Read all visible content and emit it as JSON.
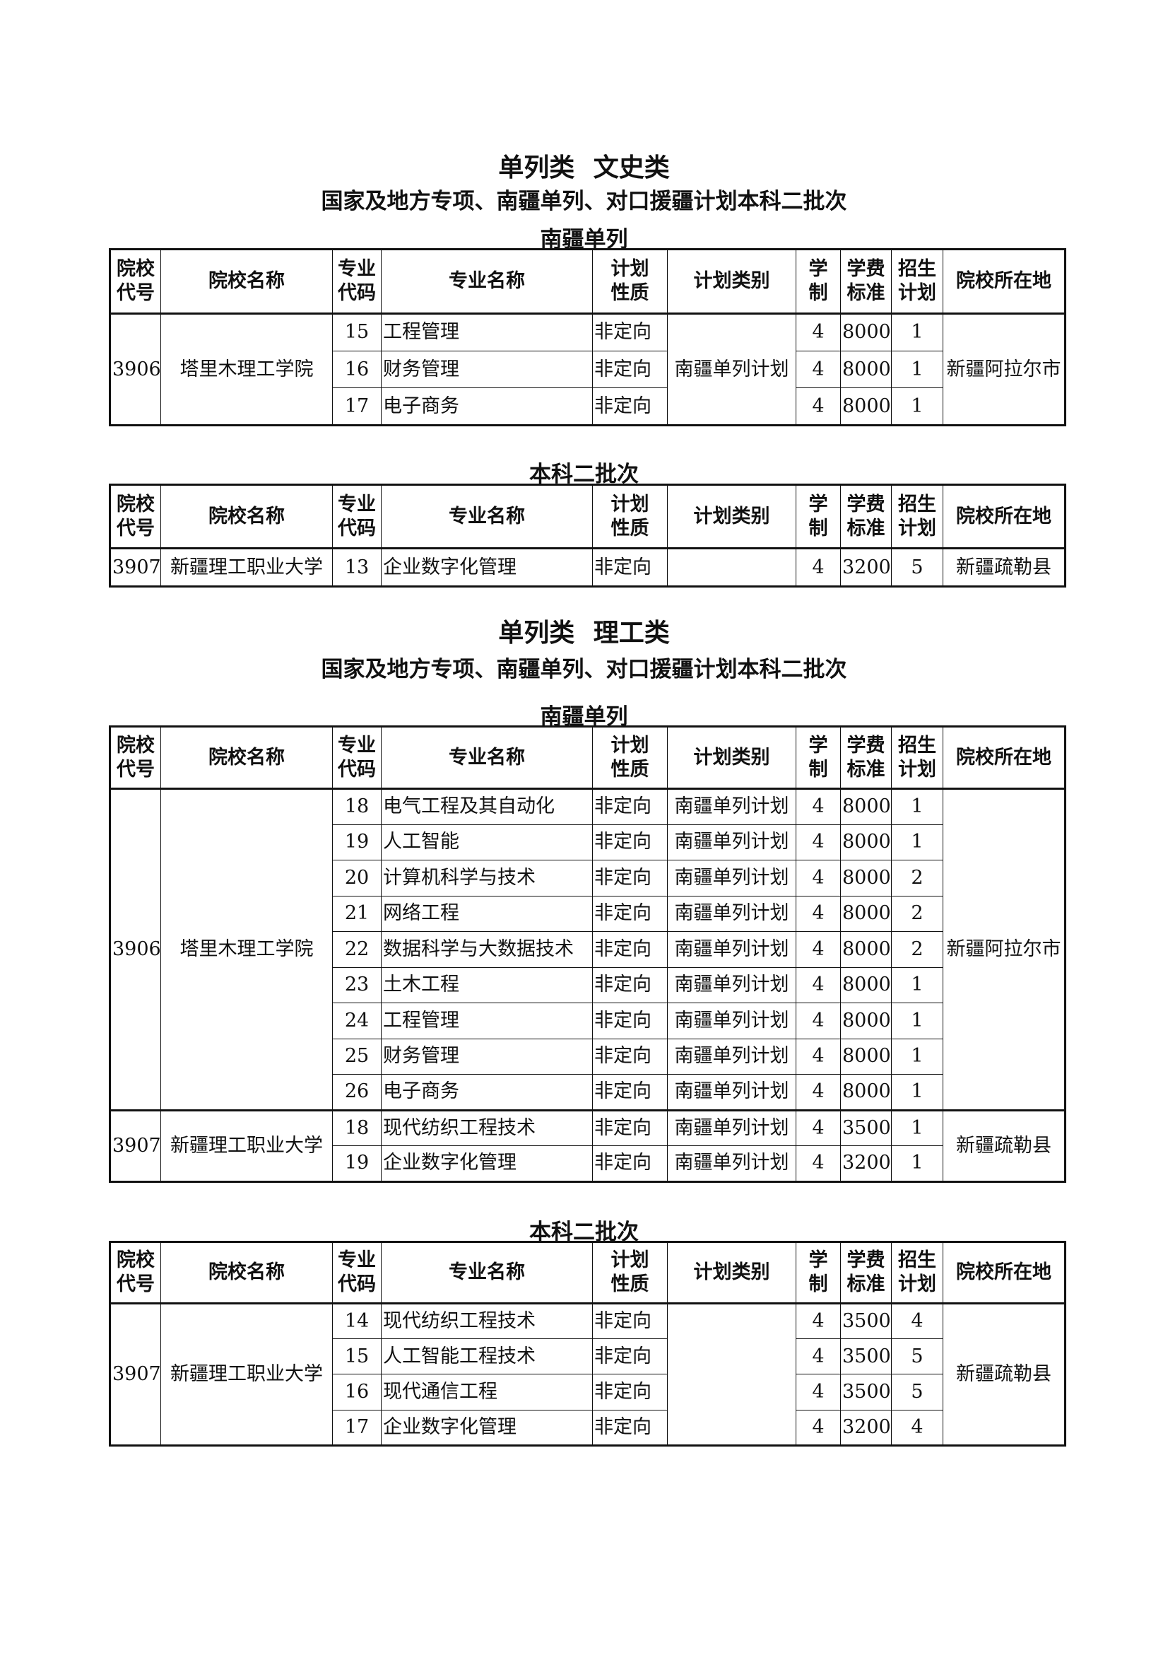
{
  "headers": [
    "院校代号",
    "院校名称",
    "专业代码",
    "专业名称",
    "计划性质",
    "计划类别",
    "学制",
    "学费标准",
    "招生计划",
    "院校所在地"
  ],
  "header_lines": [
    [
      "院校",
      "代号"
    ],
    [
      "院校名称"
    ],
    [
      "专业",
      "代码"
    ],
    [
      "专业名称"
    ],
    [
      "计划",
      "性质"
    ],
    [
      "计划类别"
    ],
    [
      "学",
      "制"
    ],
    [
      "学费",
      "标准"
    ],
    [
      "招生",
      "计划"
    ],
    [
      "院校所在地"
    ]
  ],
  "sections": [
    {
      "title": "单列类 文史类",
      "subtitle": "国家及地方专项、南疆单列、对口援疆计划本科二批次",
      "tables": [
        {
          "label": "南疆单列",
          "groups": [
            {
              "code": "3906",
              "name": "塔里木理工学院",
              "location": "新疆阿拉尔市",
              "plan_type": "南疆单列计划",
              "majors": [
                {
                  "code": "15",
                  "name": "工程管理",
                  "nature": "非定向",
                  "years": "4",
                  "fee": "8000",
                  "quota": "1"
                },
                {
                  "code": "16",
                  "name": "财务管理",
                  "nature": "非定向",
                  "years": "4",
                  "fee": "8000",
                  "quota": "1"
                },
                {
                  "code": "17",
                  "name": "电子商务",
                  "nature": "非定向",
                  "years": "4",
                  "fee": "8000",
                  "quota": "1"
                }
              ]
            }
          ]
        },
        {
          "label": "本科二批次",
          "groups": [
            {
              "code": "3907",
              "name": "新疆理工职业大学",
              "location": "新疆疏勒县",
              "plan_type": "",
              "majors": [
                {
                  "code": "13",
                  "name": "企业数字化管理",
                  "nature": "非定向",
                  "years": "4",
                  "fee": "3200",
                  "quota": "5"
                }
              ]
            }
          ]
        }
      ]
    },
    {
      "title": "单列类 理工类",
      "subtitle": "国家及地方专项、南疆单列、对口援疆计划本科二批次",
      "tables": [
        {
          "label": "南疆单列",
          "groups": [
            {
              "code": "3906",
              "name": "塔里木理工学院",
              "location": "新疆阿拉尔市",
              "majors": [
                {
                  "code": "18",
                  "name": "电气工程及其自动化",
                  "nature": "非定向",
                  "plan_type": "南疆单列计划",
                  "years": "4",
                  "fee": "8000",
                  "quota": "1"
                },
                {
                  "code": "19",
                  "name": "人工智能",
                  "nature": "非定向",
                  "plan_type": "南疆单列计划",
                  "years": "4",
                  "fee": "8000",
                  "quota": "1"
                },
                {
                  "code": "20",
                  "name": "计算机科学与技术",
                  "nature": "非定向",
                  "plan_type": "南疆单列计划",
                  "years": "4",
                  "fee": "8000",
                  "quota": "2"
                },
                {
                  "code": "21",
                  "name": "网络工程",
                  "nature": "非定向",
                  "plan_type": "南疆单列计划",
                  "years": "4",
                  "fee": "8000",
                  "quota": "2"
                },
                {
                  "code": "22",
                  "name": "数据科学与大数据技术",
                  "nature": "非定向",
                  "plan_type": "南疆单列计划",
                  "years": "4",
                  "fee": "8000",
                  "quota": "2"
                },
                {
                  "code": "23",
                  "name": "土木工程",
                  "nature": "非定向",
                  "plan_type": "南疆单列计划",
                  "years": "4",
                  "fee": "8000",
                  "quota": "1"
                },
                {
                  "code": "24",
                  "name": "工程管理",
                  "nature": "非定向",
                  "plan_type": "南疆单列计划",
                  "years": "4",
                  "fee": "8000",
                  "quota": "1"
                },
                {
                  "code": "25",
                  "name": "财务管理",
                  "nature": "非定向",
                  "plan_type": "南疆单列计划",
                  "years": "4",
                  "fee": "8000",
                  "quota": "1"
                },
                {
                  "code": "26",
                  "name": "电子商务",
                  "nature": "非定向",
                  "plan_type": "南疆单列计划",
                  "years": "4",
                  "fee": "8000",
                  "quota": "1"
                }
              ]
            },
            {
              "code": "3907",
              "name": "新疆理工职业大学",
              "location": "新疆疏勒县",
              "majors": [
                {
                  "code": "18",
                  "name": "现代纺织工程技术",
                  "nature": "非定向",
                  "plan_type": "南疆单列计划",
                  "years": "4",
                  "fee": "3500",
                  "quota": "1"
                },
                {
                  "code": "19",
                  "name": "企业数字化管理",
                  "nature": "非定向",
                  "plan_type": "南疆单列计划",
                  "years": "4",
                  "fee": "3200",
                  "quota": "1"
                }
              ]
            }
          ]
        },
        {
          "label": "本科二批次",
          "groups": [
            {
              "code": "3907",
              "name": "新疆理工职业大学",
              "location": "新疆疏勒县",
              "plan_type": "",
              "majors": [
                {
                  "code": "14",
                  "name": "现代纺织工程技术",
                  "nature": "非定向",
                  "years": "4",
                  "fee": "3500",
                  "quota": "4"
                },
                {
                  "code": "15",
                  "name": "人工智能工程技术",
                  "nature": "非定向",
                  "years": "4",
                  "fee": "3500",
                  "quota": "5"
                },
                {
                  "code": "16",
                  "name": "现代通信工程",
                  "nature": "非定向",
                  "years": "4",
                  "fee": "3500",
                  "quota": "5"
                },
                {
                  "code": "17",
                  "name": "企业数字化管理",
                  "nature": "非定向",
                  "years": "4",
                  "fee": "3200",
                  "quota": "4"
                }
              ]
            }
          ]
        }
      ]
    }
  ]
}
